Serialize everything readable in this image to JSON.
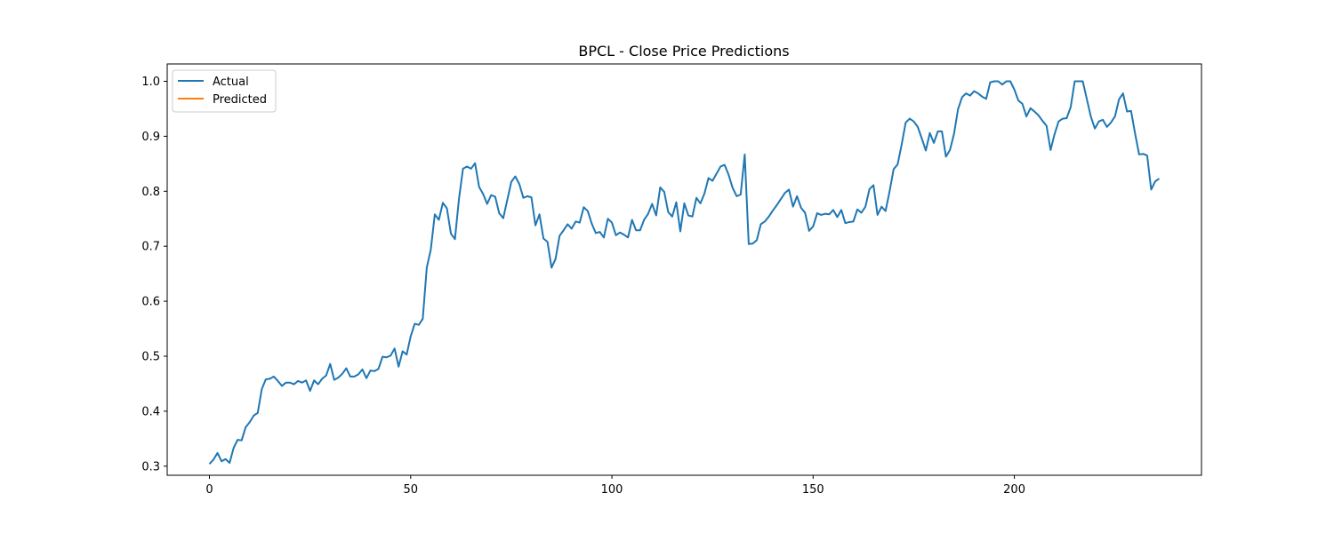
{
  "chart_data": {
    "type": "line",
    "title": "BPCL - Close Price Predictions",
    "xlabel": "",
    "ylabel": "",
    "xlim": [
      -10.5,
      246.5
    ],
    "ylim": [
      0.2835,
      1.0315
    ],
    "x_ticks": [
      0,
      50,
      100,
      150,
      200
    ],
    "y_ticks": [
      0.3,
      0.4,
      0.5,
      0.6,
      0.7,
      0.8,
      0.9,
      1.0
    ],
    "x_tick_labels": [
      "0",
      "50",
      "100",
      "150",
      "200"
    ],
    "y_tick_labels": [
      "0.3",
      "0.4",
      "0.5",
      "0.6",
      "0.7",
      "0.8",
      "0.9",
      "1.0"
    ],
    "grid": false,
    "legend_position": "top-left",
    "series": [
      {
        "name": "Actual",
        "color": "#1f77b4",
        "values": [
          0.304,
          0.312,
          0.324,
          0.309,
          0.313,
          0.306,
          0.333,
          0.348,
          0.347,
          0.371,
          0.38,
          0.392,
          0.397,
          0.44,
          0.458,
          0.459,
          0.463,
          0.455,
          0.446,
          0.452,
          0.452,
          0.449,
          0.455,
          0.452,
          0.456,
          0.437,
          0.456,
          0.449,
          0.459,
          0.465,
          0.486,
          0.457,
          0.461,
          0.468,
          0.478,
          0.463,
          0.463,
          0.467,
          0.476,
          0.46,
          0.474,
          0.473,
          0.477,
          0.499,
          0.498,
          0.501,
          0.514,
          0.481,
          0.509,
          0.503,
          0.536,
          0.559,
          0.557,
          0.568,
          0.661,
          0.694,
          0.758,
          0.748,
          0.779,
          0.769,
          0.723,
          0.713,
          0.786,
          0.841,
          0.845,
          0.841,
          0.851,
          0.808,
          0.795,
          0.777,
          0.793,
          0.79,
          0.76,
          0.751,
          0.784,
          0.817,
          0.827,
          0.813,
          0.788,
          0.791,
          0.789,
          0.738,
          0.758,
          0.714,
          0.708,
          0.661,
          0.677,
          0.719,
          0.729,
          0.74,
          0.732,
          0.745,
          0.743,
          0.771,
          0.764,
          0.741,
          0.724,
          0.726,
          0.716,
          0.75,
          0.743,
          0.72,
          0.725,
          0.721,
          0.716,
          0.748,
          0.729,
          0.729,
          0.748,
          0.759,
          0.777,
          0.756,
          0.807,
          0.799,
          0.762,
          0.754,
          0.78,
          0.727,
          0.778,
          0.756,
          0.754,
          0.788,
          0.778,
          0.796,
          0.824,
          0.819,
          0.832,
          0.845,
          0.848,
          0.83,
          0.806,
          0.791,
          0.794,
          0.867,
          0.704,
          0.705,
          0.711,
          0.74,
          0.745,
          0.754,
          0.765,
          0.775,
          0.786,
          0.797,
          0.803,
          0.772,
          0.791,
          0.77,
          0.761,
          0.728,
          0.736,
          0.76,
          0.757,
          0.759,
          0.758,
          0.766,
          0.753,
          0.766,
          0.742,
          0.744,
          0.745,
          0.767,
          0.761,
          0.772,
          0.804,
          0.811,
          0.757,
          0.772,
          0.764,
          0.8,
          0.84,
          0.849,
          0.885,
          0.925,
          0.932,
          0.927,
          0.917,
          0.896,
          0.874,
          0.906,
          0.888,
          0.909,
          0.909,
          0.863,
          0.875,
          0.904,
          0.949,
          0.971,
          0.978,
          0.974,
          0.982,
          0.978,
          0.972,
          0.968,
          0.998,
          1.0,
          1.0,
          0.994,
          1.0,
          1.0,
          0.985,
          0.965,
          0.959,
          0.936,
          0.951,
          0.945,
          0.938,
          0.928,
          0.919,
          0.875,
          0.904,
          0.927,
          0.932,
          0.933,
          0.953,
          1.0,
          1.0,
          1.0,
          0.968,
          0.936,
          0.914,
          0.927,
          0.93,
          0.917,
          0.925,
          0.936,
          0.967,
          0.978,
          0.945,
          0.946,
          0.905,
          0.867,
          0.868,
          0.865,
          0.803,
          0.818,
          0.823
        ]
      },
      {
        "name": "Predicted",
        "color": "#ff7f0e",
        "values": []
      }
    ]
  }
}
